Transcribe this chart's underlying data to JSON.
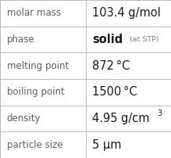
{
  "rows": [
    {
      "label": "molar mass",
      "value": "103.4 g/mol",
      "extra": null,
      "superscript": false
    },
    {
      "label": "phase",
      "value": "solid",
      "extra": "(at STP)",
      "superscript": false
    },
    {
      "label": "melting point",
      "value": "872 °C",
      "extra": null,
      "superscript": false
    },
    {
      "label": "boiling point",
      "value": "1500 °C",
      "extra": null,
      "superscript": false
    },
    {
      "label": "density",
      "value": "4.95 g/cm",
      "extra": "3",
      "superscript": true
    },
    {
      "label": "particle size",
      "value": "5 μm",
      "extra": null,
      "superscript": false
    }
  ],
  "bg_color": "#ffffff",
  "border_color": "#b0b0b0",
  "label_color": "#606060",
  "value_color": "#1a1a1a",
  "small_color": "#808080",
  "col_split": 0.5,
  "label_fontsize": 8.5,
  "value_fontsize": 10.5,
  "small_fontsize": 6.8,
  "super_fontsize": 7.0
}
